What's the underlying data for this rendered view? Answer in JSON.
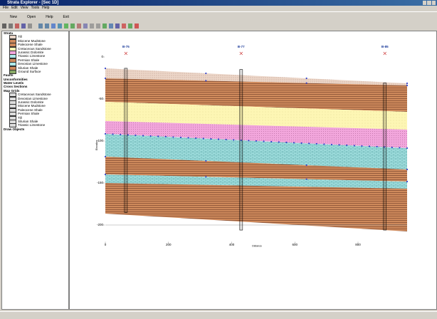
{
  "window": {
    "title": "Strata Explorer - [Sec 1D]"
  },
  "menu": [
    "File",
    "Edit",
    "View",
    "Tools",
    "Help"
  ],
  "toolbar": [
    "New",
    "Open",
    "Help",
    "Exit"
  ],
  "tree": {
    "strata": {
      "label": "Strata",
      "items": [
        "Till",
        "Miocene Mudstone",
        "Paleocene Shale",
        "Cretaceous Sandstone",
        "Jurassic Dolomite",
        "Triassic Limestone",
        "Permian Shale",
        "Devonian Limestone",
        "Silurian Shale",
        "Ground Surface"
      ]
    },
    "faults": "Faults",
    "unconformities": "Unconformities",
    "water_levels": "Water Levels",
    "cross_sections": "Cross Sections",
    "map_grids": {
      "label": "Map Grids",
      "items": [
        "Cretaceous Sandstone",
        "Devonian Limestone",
        "Jurassic Dolomite",
        "Miocene Mudstone",
        "Paleocene Shale",
        "Permian Shale",
        "Till",
        "Silurian Shale",
        "Triassic Limestone"
      ]
    },
    "draw_objects": "Draw Objects"
  },
  "chart": {
    "y_axis_label": "Elevation",
    "x_axis_label": "Distance",
    "xlim": [
      0,
      960
    ],
    "ylim": [
      -220,
      10
    ],
    "xticks": [
      0,
      200,
      400,
      600,
      800
    ],
    "yticks": [
      0,
      -50,
      -100,
      -150,
      -200
    ],
    "boreholes": [
      {
        "name": "B-75",
        "x": 65,
        "top": -13.5,
        "bottom": -185
      },
      {
        "name": "B-77",
        "x": 430,
        "top": -15,
        "bottom": -206
      },
      {
        "name": "B-85",
        "x": 885,
        "top": -31,
        "bottom": -206
      }
    ]
  }
}
